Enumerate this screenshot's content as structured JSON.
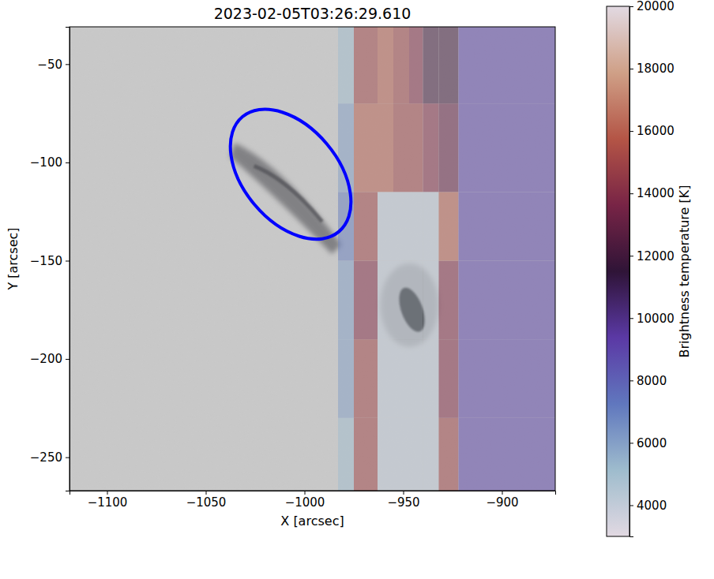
{
  "chart_data": {
    "type": "heatmap",
    "title": "2023-02-05T03:26:29.610",
    "x_label": "X [arcsec]",
    "y_label": "Y [arcsec]",
    "xlim": [
      -1119,
      -873
    ],
    "xticks": [
      {
        "value": -1100,
        "label": "−1100"
      },
      {
        "value": -1050,
        "label": "−1050"
      },
      {
        "value": -1000,
        "label": "−1000"
      },
      {
        "value": -950,
        "label": "−950"
      },
      {
        "value": -900,
        "label": "−900"
      }
    ],
    "ylim": [
      -267,
      -31
    ],
    "yticks": [
      {
        "value": -50,
        "label": "−50"
      },
      {
        "value": -100,
        "label": "−100"
      },
      {
        "value": -150,
        "label": "−150"
      },
      {
        "value": -200,
        "label": "−200"
      },
      {
        "value": -250,
        "label": "−250"
      }
    ],
    "cells": {
      "x_edges": [
        -983,
        -975,
        -963,
        -955,
        -947,
        -940,
        -932,
        -922,
        -873
      ],
      "y_edges": [
        -267,
        -230,
        -190,
        -150,
        -115,
        -70,
        -31
      ],
      "values": [
        [
          5000,
          15000,
          4000,
          4000,
          4000,
          4000,
          15000,
          9000
        ],
        [
          6000,
          15000,
          4000,
          4000,
          4000,
          4000,
          14000,
          9000
        ],
        [
          6000,
          14000,
          4000,
          4000,
          4000,
          4000,
          14000,
          9000
        ],
        [
          7000,
          15000,
          4000,
          4000,
          4000,
          4000,
          16000,
          9000
        ],
        [
          6000,
          16000,
          16000,
          15000,
          15000,
          14000,
          13000,
          9000
        ],
        [
          5000,
          15000,
          16000,
          15000,
          14000,
          12000,
          12000,
          9000
        ]
      ]
    },
    "colorbar": {
      "label": "Brightness temperature [K]",
      "lim": [
        3000,
        20000
      ],
      "ticks": [
        4000,
        6000,
        8000,
        10000,
        12000,
        14000,
        16000,
        18000,
        20000
      ]
    },
    "annotations": [
      {
        "type": "ellipse",
        "center": [
          -1007,
          -106
        ],
        "semi_axes": [
          38,
          24
        ],
        "color": "#0000ff"
      }
    ]
  }
}
